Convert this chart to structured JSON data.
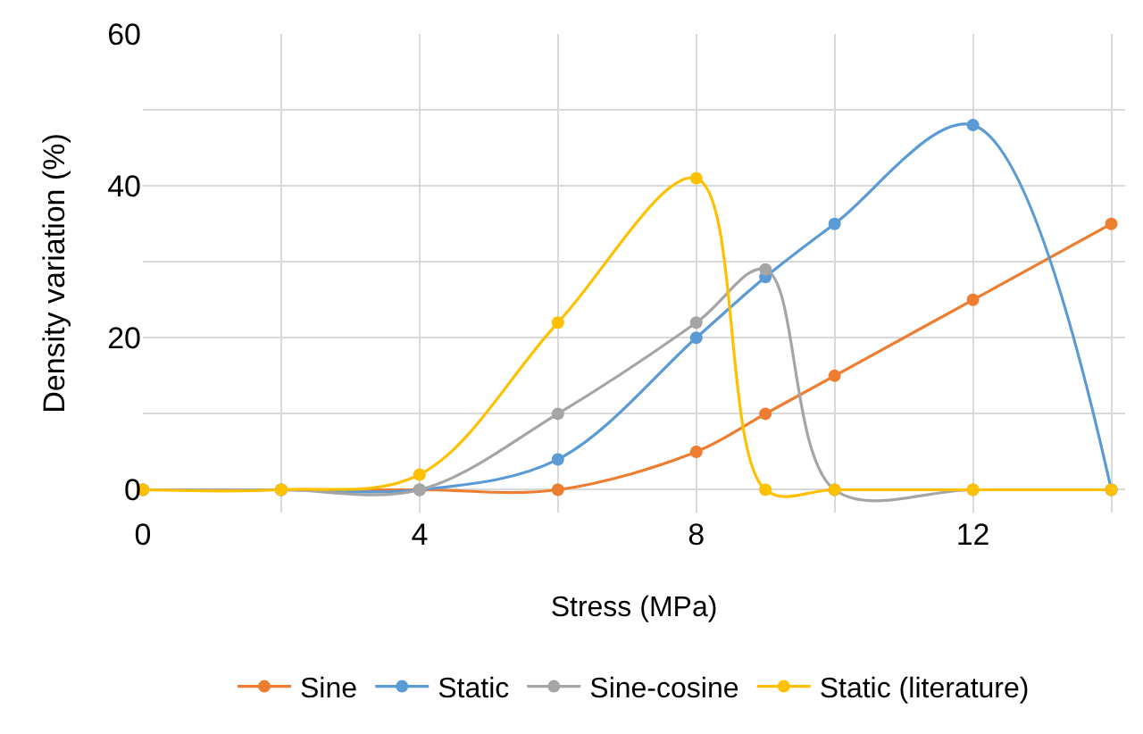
{
  "chart_data": {
    "type": "line",
    "xlabel": "Stress (MPa)",
    "ylabel": "Density variation (%)",
    "x": [
      0,
      2,
      4,
      6,
      8,
      9,
      10,
      12,
      14
    ],
    "series": [
      {
        "name": "Sine",
        "color": "#ed7d31",
        "values": [
          0,
          0,
          0,
          0,
          5,
          10,
          15,
          25,
          35
        ]
      },
      {
        "name": "Static",
        "color": "#5b9bd5",
        "values": [
          0,
          0,
          0,
          4,
          20,
          28,
          35,
          48,
          0
        ]
      },
      {
        "name": "Sine-cosine",
        "color": "#a5a5a5",
        "values": [
          0,
          0,
          0,
          10,
          22,
          29,
          0,
          0,
          0
        ]
      },
      {
        "name": "Static (literature)",
        "color": "#ffc000",
        "values": [
          0,
          0,
          2,
          22,
          41,
          0,
          0,
          0,
          0
        ]
      }
    ],
    "xlim": [
      0,
      14.2
    ],
    "xticks": [
      0,
      {
        "value": 2,
        "label": null
      },
      4,
      {
        "value": 6,
        "label": null
      },
      8,
      {
        "value": 10,
        "label": null
      },
      12,
      {
        "value": 14,
        "label": null
      }
    ],
    "ylim": [
      -3,
      60
    ],
    "yticks": [
      0,
      {
        "value": 10,
        "label": null
      },
      20,
      {
        "value": 30,
        "label": null
      },
      40,
      {
        "value": 50,
        "label": null
      },
      60
    ],
    "grid": true,
    "legend": "bottom",
    "marker": "circle",
    "line_style": "solid"
  }
}
